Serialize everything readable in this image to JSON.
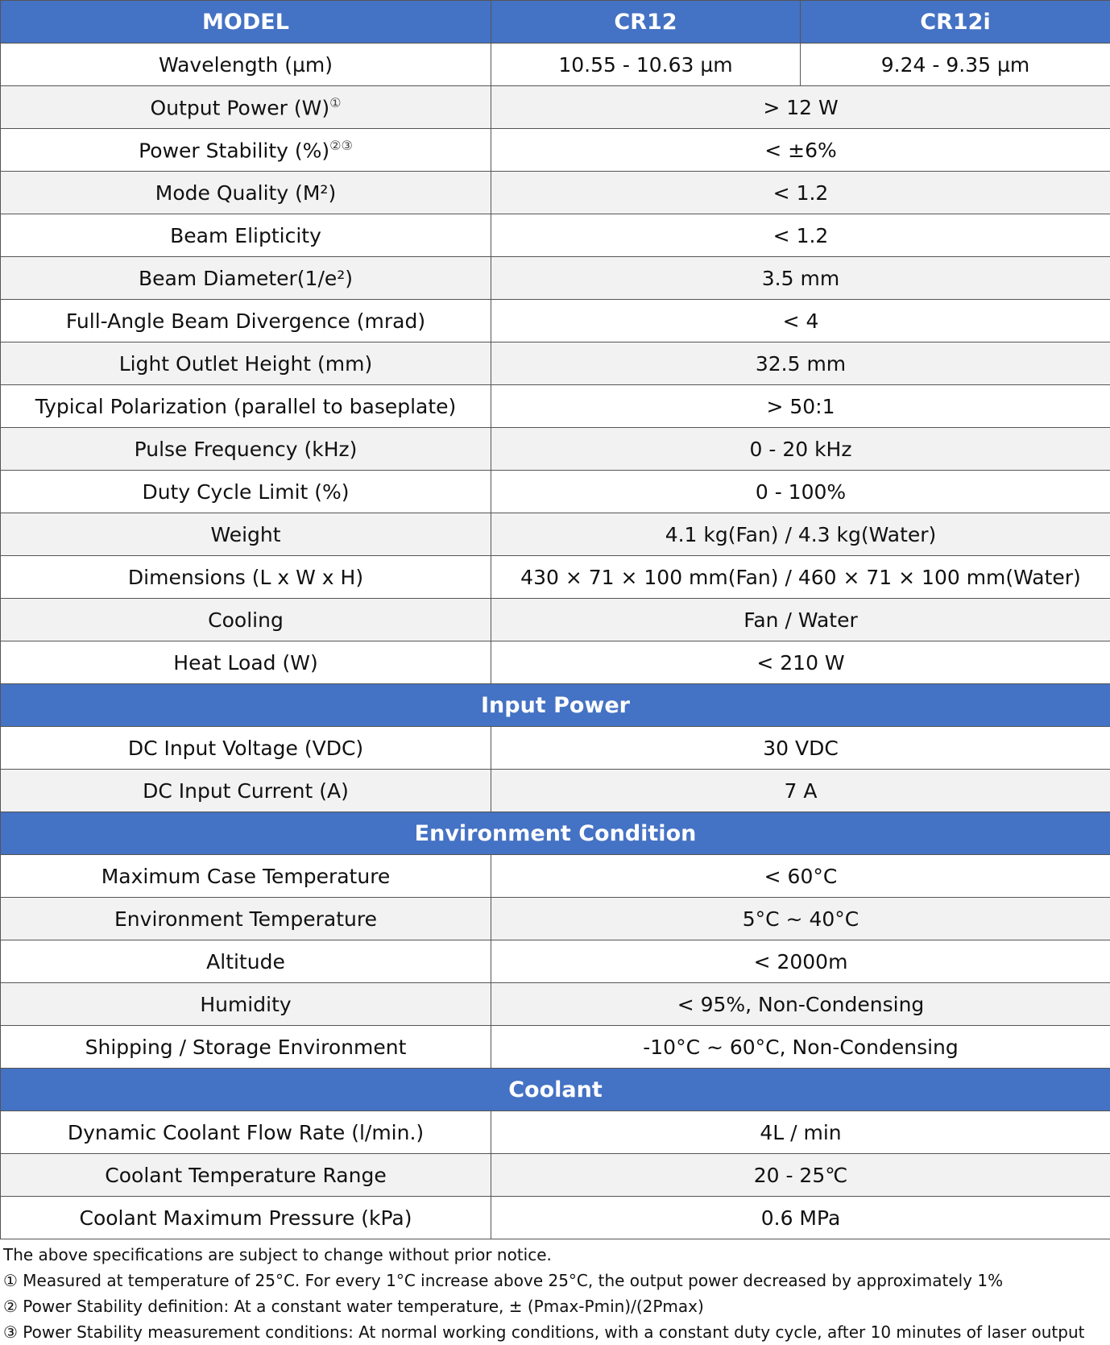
{
  "table": {
    "header": [
      "MODEL",
      "CR12",
      "CR12i"
    ],
    "rows": [
      {
        "label": "Wavelength (µm)",
        "values": [
          "10.55 - 10.63 µm",
          "9.24 - 9.35 µm"
        ]
      },
      {
        "label": "Output Power (W)",
        "mark": "①",
        "values": [
          "> 12 W"
        ]
      },
      {
        "label": "Power Stability (%)",
        "mark": "②③",
        "values": [
          "< ±6%"
        ]
      },
      {
        "label": "Mode Quality (M²)",
        "values": [
          "< 1.2"
        ]
      },
      {
        "label": "Beam Elipticity",
        "values": [
          "< 1.2"
        ]
      },
      {
        "label": "Beam Diameter(1/e²)",
        "values": [
          "3.5 mm"
        ]
      },
      {
        "label": "Full-Angle Beam Divergence (mrad)",
        "values": [
          "< 4"
        ]
      },
      {
        "label": "Light Outlet Height (mm)",
        "values": [
          "32.5 mm"
        ]
      },
      {
        "label": "Typical Polarization (parallel to baseplate)",
        "values": [
          "> 50:1"
        ]
      },
      {
        "label": "Pulse Frequency (kHz)",
        "values": [
          "0 - 20 kHz"
        ]
      },
      {
        "label": "Duty Cycle Limit (%)",
        "values": [
          "0 - 100%"
        ]
      },
      {
        "label": "Weight",
        "values": [
          "4.1 kg(Fan)  /  4.3 kg(Water)"
        ]
      },
      {
        "label": "Dimensions (L x W x H)",
        "values": [
          "430 × 71 × 100 mm(Fan)  / 460 × 71 × 100 mm(Water)"
        ]
      },
      {
        "label": "Cooling",
        "values": [
          "Fan / Water"
        ]
      },
      {
        "label": "Heat Load (W)",
        "values": [
          "< 210 W"
        ]
      },
      {
        "section": "Input Power"
      },
      {
        "label": "DC Input Voltage (VDC)",
        "values": [
          "30 VDC"
        ]
      },
      {
        "label": "DC Input Current (A)",
        "values": [
          "7 A"
        ]
      },
      {
        "section": "Environment Condition"
      },
      {
        "label": "Maximum Case Temperature",
        "values": [
          "< 60°C"
        ]
      },
      {
        "label": "Environment Temperature",
        "values": [
          "5°C ~ 40°C"
        ]
      },
      {
        "label": "Altitude",
        "values": [
          "< 2000m"
        ]
      },
      {
        "label": "Humidity",
        "values": [
          "< 95%, Non-Condensing"
        ]
      },
      {
        "label": "Shipping / Storage Environment",
        "values": [
          "-10°C ~ 60°C,  Non-Condensing"
        ]
      },
      {
        "section": "Coolant"
      },
      {
        "label": "Dynamic Coolant Flow Rate (l/min.)",
        "values": [
          "4L / min"
        ]
      },
      {
        "label": "Coolant Temperature Range",
        "values": [
          "20 - 25℃"
        ]
      },
      {
        "label": "Coolant Maximum Pressure (kPa)",
        "values": [
          "0.6 MPa"
        ]
      }
    ]
  },
  "notes": [
    "The above specifications are subject to change without prior notice.",
    "① Measured at  temperature of 25°C. For every 1°C increase above 25°C, the output power decreased by approximately 1%",
    "② Power Stability definition: At a constant water temperature, ± (Pmax-Pmin)/(2Pmax)",
    "③ Power Stability measurement conditions: At normal working conditions, with a constant duty cycle, after 10 minutes of laser output"
  ]
}
